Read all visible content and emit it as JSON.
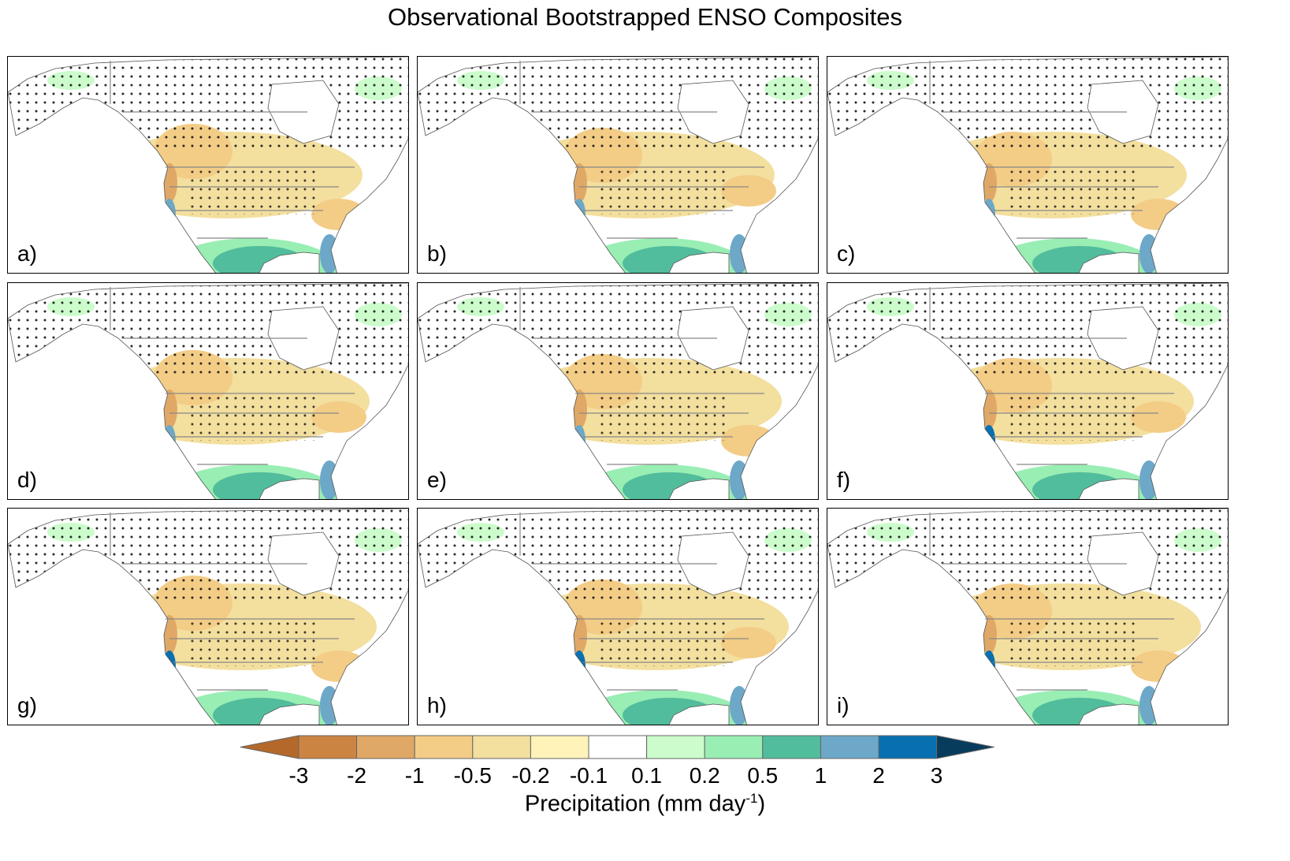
{
  "title": "Observational Bootstrapped ENSO Composites",
  "panels": [
    {
      "label": "a)"
    },
    {
      "label": "b)"
    },
    {
      "label": "c)"
    },
    {
      "label": "d)"
    },
    {
      "label": "e)"
    },
    {
      "label": "f)"
    },
    {
      "label": "g)"
    },
    {
      "label": "h)"
    },
    {
      "label": "i)"
    }
  ],
  "colorbar": {
    "ticks": [
      "-3",
      "-2",
      "-1",
      "-0.5",
      "-0.2",
      "-0.1",
      "0.1",
      "0.2",
      "0.5",
      "1",
      "2",
      "3"
    ],
    "colors": [
      "#b4692a",
      "#cc8442",
      "#e0a866",
      "#f3cc86",
      "#f3df9e",
      "#fff3b9",
      "#ffffff",
      "#ccfccc",
      "#99eeb4",
      "#52bd9c",
      "#6da8c8",
      "#0870b0",
      "#083c5c"
    ],
    "label": "Precipitation (mm day",
    "label_exponent": "-1",
    "label_close": ")"
  }
}
